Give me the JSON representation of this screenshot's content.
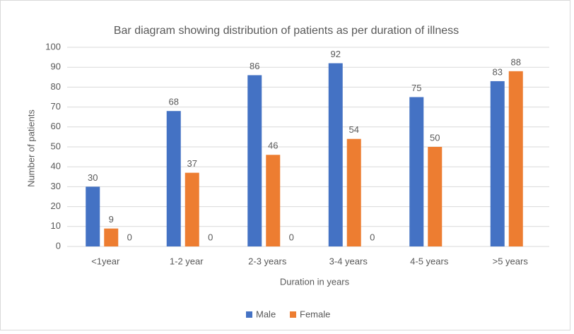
{
  "chart_data": {
    "type": "bar",
    "title": "Bar diagram showing distribution of patients as per duration of illness",
    "xlabel": "Duration in years",
    "ylabel": "Number  of patients",
    "categories": [
      "<1year",
      "1-2 year",
      "2-3 years",
      "3-4 years",
      "4-5 years",
      ">5 years"
    ],
    "series": [
      {
        "name": "Male",
        "color": "#4472c4",
        "values": [
          30,
          68,
          86,
          92,
          75,
          83
        ]
      },
      {
        "name": "Female",
        "color": "#ed7d31",
        "values": [
          9,
          37,
          46,
          54,
          50,
          88
        ]
      },
      {
        "values": [
          0,
          0,
          0,
          0,
          null,
          null
        ]
      }
    ],
    "ylim": [
      0,
      100
    ],
    "yticks": [
      0,
      10,
      20,
      30,
      40,
      50,
      60,
      70,
      80,
      90,
      100
    ],
    "grid": true,
    "legend": "bottom"
  }
}
